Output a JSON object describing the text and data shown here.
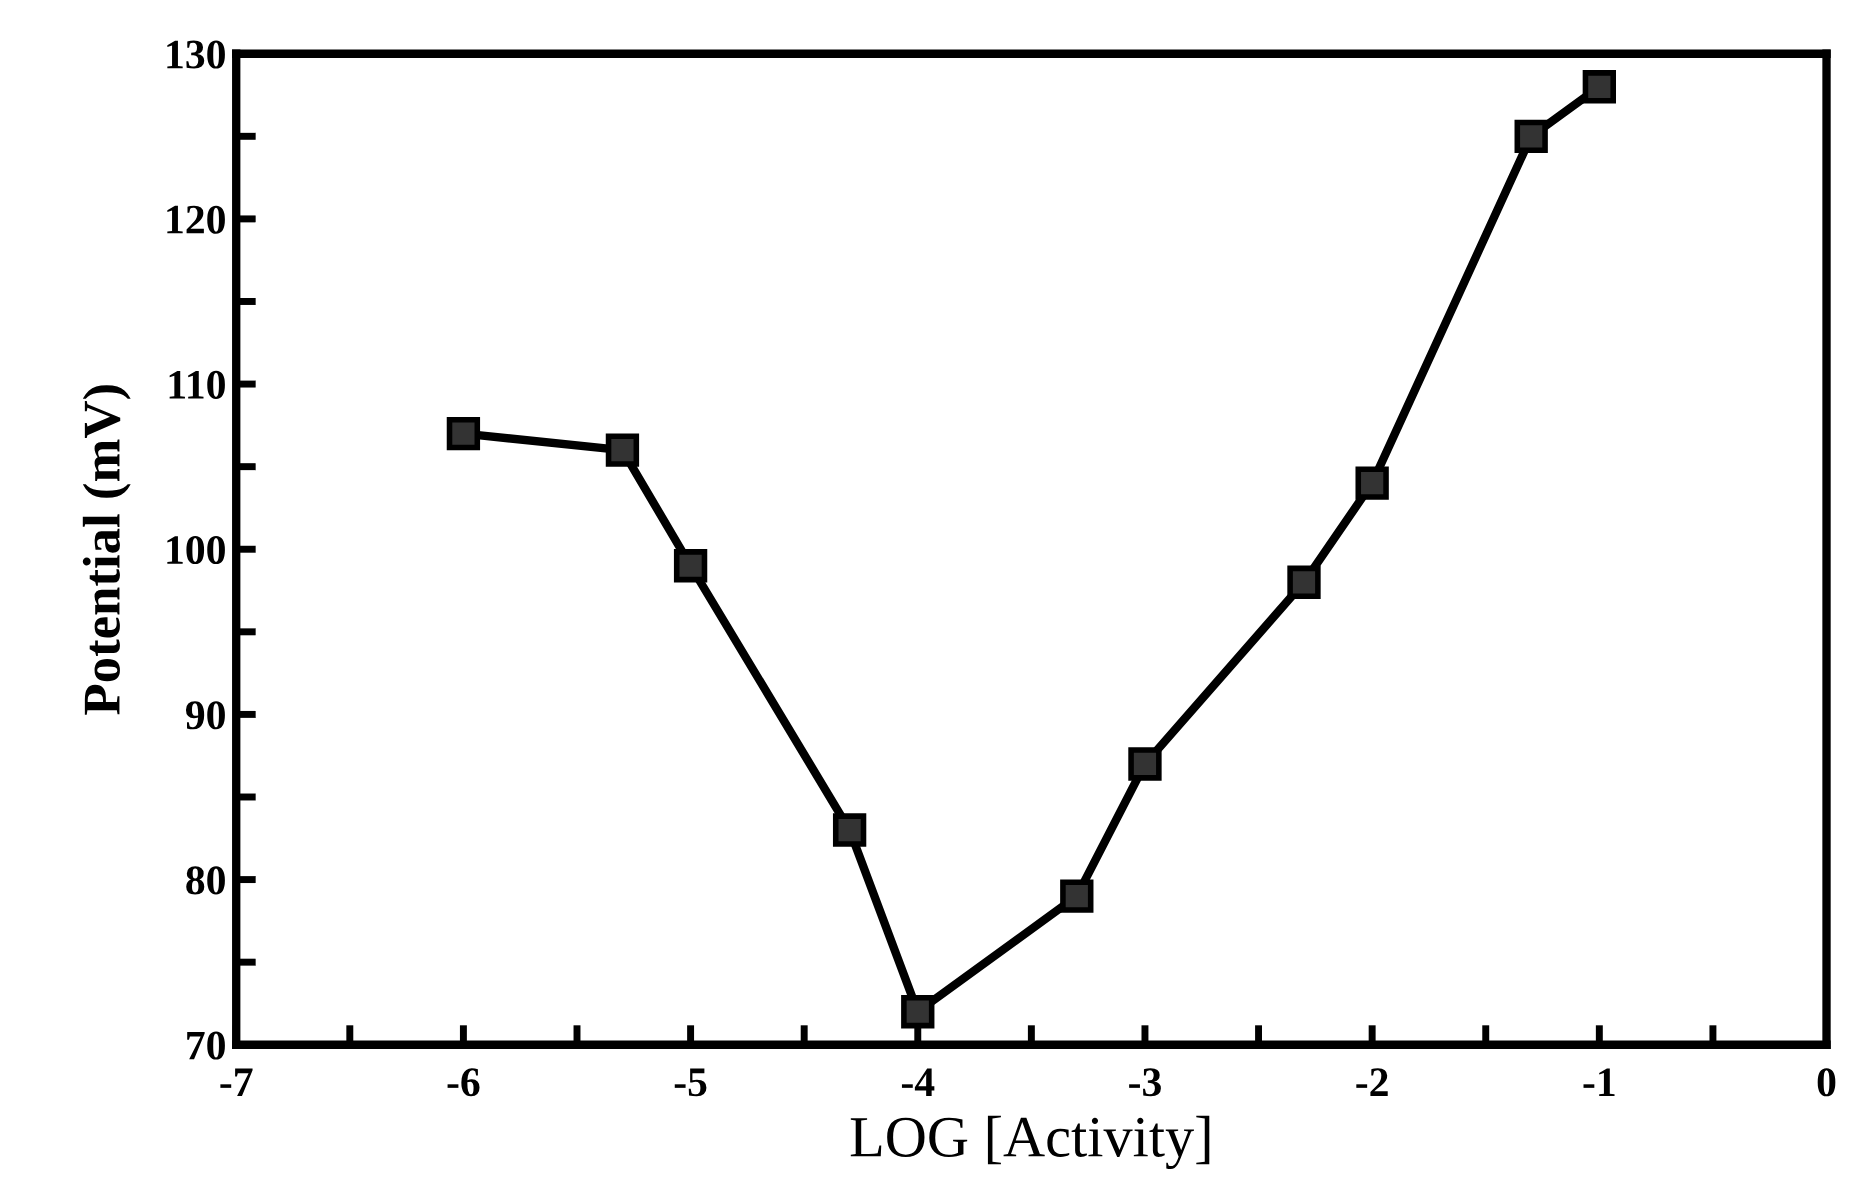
{
  "chart_data": {
    "type": "line",
    "xlabel": "LOG [Activity]",
    "ylabel": "Potential (mV)",
    "x": [
      -6,
      -5.3,
      -5,
      -4.3,
      -4,
      -3.3,
      -3,
      -2.3,
      -2,
      -1.3,
      -1
    ],
    "series": [
      {
        "color": "#000000",
        "values": [
          107,
          106,
          99,
          83,
          72,
          79,
          87,
          98,
          104,
          125,
          128
        ]
      }
    ],
    "xlim": [
      -7,
      0
    ],
    "ylim": [
      70,
      130
    ],
    "xticks": [
      -7,
      {
        "value": -6.5,
        "label": null
      },
      -6,
      {
        "value": -5.5,
        "label": null
      },
      -5,
      {
        "value": -4.5,
        "label": null
      },
      -4,
      {
        "value": -3.5,
        "label": null
      },
      -3,
      {
        "value": -2.5,
        "label": null
      },
      -2,
      {
        "value": -1.5,
        "label": null
      },
      -1,
      {
        "value": -0.5,
        "label": null
      },
      0
    ],
    "yticks": [
      70,
      {
        "value": 75,
        "label": null
      },
      80,
      {
        "value": 85,
        "label": null
      },
      90,
      {
        "value": 95,
        "label": null
      },
      100,
      {
        "value": 105,
        "label": null
      },
      110,
      {
        "value": 115,
        "label": null
      },
      120,
      {
        "value": 125,
        "label": null
      },
      130
    ],
    "marker": "square",
    "line_style": "solid"
  }
}
